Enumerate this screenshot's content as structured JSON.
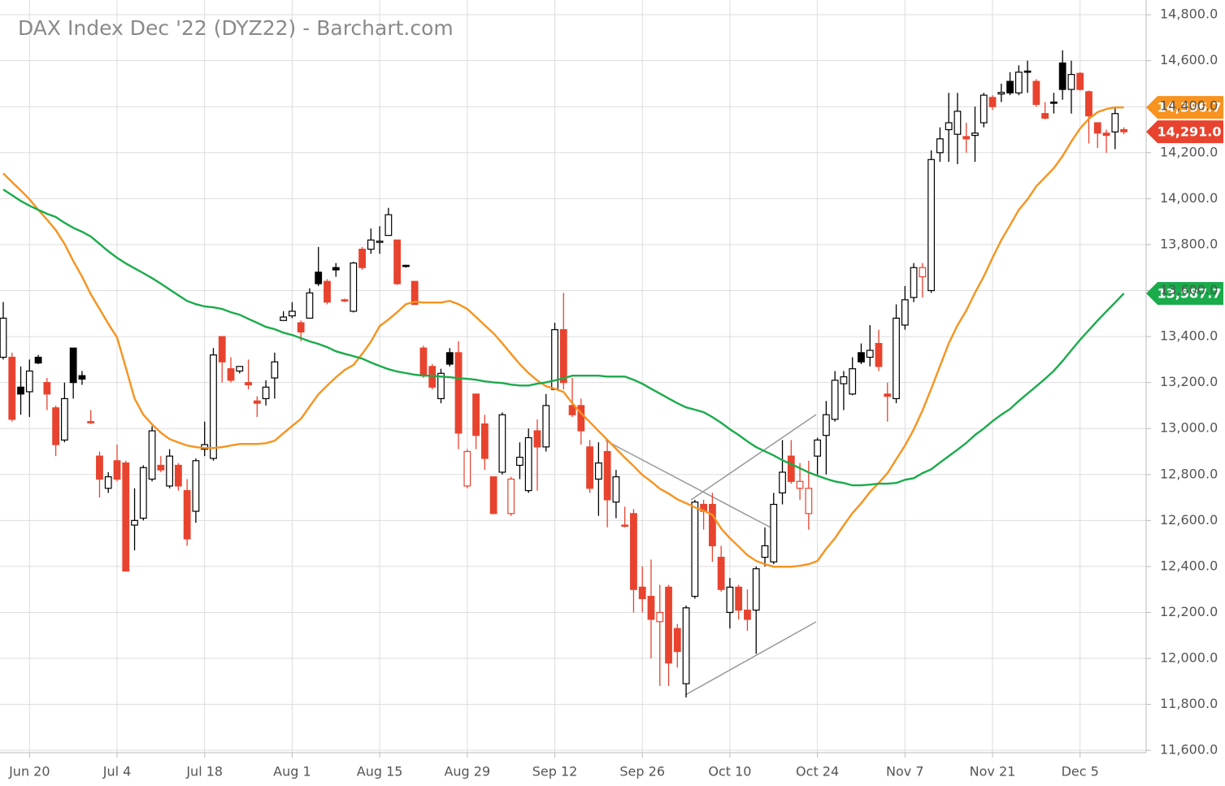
{
  "chart_data": {
    "type": "candlestick",
    "title": "DAX Index Dec '22 (DYZ22) - Barchart.com",
    "categories": [
      null,
      null,
      null,
      "Jun 20",
      null,
      null,
      null,
      null,
      null,
      null,
      null,
      null,
      null,
      "Jul 4",
      null,
      null,
      null,
      null,
      null,
      null,
      null,
      null,
      null,
      "Jul 18",
      null,
      null,
      null,
      null,
      null,
      null,
      null,
      null,
      null,
      "Aug 1",
      null,
      null,
      null,
      null,
      null,
      null,
      null,
      null,
      null,
      "Aug 15",
      null,
      null,
      null,
      null,
      null,
      null,
      null,
      null,
      null,
      "Aug 29",
      null,
      null,
      null,
      null,
      null,
      null,
      null,
      null,
      null,
      "Sep 12",
      null,
      null,
      null,
      null,
      null,
      null,
      null,
      null,
      null,
      "Sep 26",
      null,
      null,
      null,
      null,
      null,
      null,
      null,
      null,
      null,
      "Oct 10",
      null,
      null,
      null,
      null,
      null,
      null,
      null,
      null,
      null,
      "Oct 24",
      null,
      null,
      null,
      null,
      null,
      null,
      null,
      null,
      null,
      "Nov 7",
      null,
      null,
      null,
      null,
      null,
      null,
      null,
      null,
      null,
      "Nov 21",
      null,
      null,
      null,
      null,
      null,
      null,
      null,
      null,
      null,
      "Dec 5",
      null,
      null,
      null,
      null,
      null
    ],
    "open": [
      13310,
      13310,
      13180,
      13160,
      13310,
      13200,
      13090,
      12950,
      13350,
      13230,
      13030,
      12880,
      12740,
      12860,
      12850,
      12580,
      12610,
      12780,
      12840,
      12750,
      12840,
      12730,
      12640,
      12910,
      12870,
      13400,
      13260,
      13250,
      13200,
      13120,
      13130,
      13220,
      13470,
      13490,
      13460,
      13480,
      13680,
      13640,
      13700,
      13560,
      13510,
      13780,
      13780,
      13810,
      13840,
      13820,
      13710,
      13640,
      13350,
      13270,
      13130,
      13330,
      13330,
      12750,
      13150,
      13020,
      12790,
      12810,
      12630,
      12840,
      12730,
      12990,
      12920,
      13170,
      13430,
      13100,
      13100,
      12920,
      12780,
      12900,
      12680,
      12580,
      12630,
      12310,
      12270,
      12160,
      12310,
      12130,
      11890,
      12270,
      12670,
      12670,
      12440,
      12200,
      12310,
      12210,
      12210,
      12440,
      12420,
      12720,
      12880,
      12740,
      12630,
      12880,
      12970,
      13040,
      13195,
      13150,
      13330,
      13310,
      13370,
      13150,
      13130,
      13450,
      13570,
      13660,
      13600,
      14200,
      14300,
      14280,
      14270,
      14275,
      14330,
      14440,
      14455,
      14510,
      14460,
      14555,
      14510,
      14370,
      14420,
      14590,
      14475,
      14545,
      14465,
      14330,
      14285,
      14290,
      14300
    ],
    "high": [
      13550,
      13330,
      13270,
      13300,
      13320,
      13220,
      13100,
      13200,
      13350,
      13250,
      13080,
      12900,
      12810,
      12930,
      12860,
      12740,
      12840,
      13010,
      12880,
      12910,
      12850,
      12780,
      12870,
      13030,
      13350,
      13400,
      13310,
      13270,
      13300,
      13140,
      13210,
      13330,
      13510,
      13550,
      13470,
      13610,
      13790,
      13650,
      13720,
      13565,
      13725,
      13790,
      13870,
      13880,
      13960,
      13820,
      13712,
      13640,
      13360,
      13280,
      13260,
      13350,
      13380,
      12910,
      13150,
      13060,
      12790,
      13070,
      12790,
      12940,
      13000,
      13040,
      13150,
      13460,
      13590,
      13220,
      13130,
      12950,
      12940,
      12950,
      12820,
      12660,
      12650,
      12400,
      12430,
      12320,
      12320,
      12150,
      12230,
      12690,
      12690,
      12720,
      12490,
      12350,
      12320,
      12300,
      12400,
      12570,
      12720,
      12950,
      12950,
      12850,
      12860,
      12960,
      13120,
      13250,
      13250,
      13310,
      13370,
      13450,
      13430,
      13200,
      13540,
      13620,
      13720,
      13720,
      14210,
      14310,
      14460,
      14460,
      14330,
      14400,
      14460,
      14450,
      14500,
      14550,
      14580,
      14600,
      14520,
      14420,
      14460,
      14645,
      14600,
      14550,
      14470,
      14330,
      14300,
      14400,
      14310
    ],
    "low": [
      13300,
      13030,
      13060,
      13050,
      13280,
      13080,
      12880,
      12940,
      13130,
      13190,
      13020,
      12700,
      12720,
      12770,
      12380,
      12470,
      12600,
      12770,
      12810,
      12740,
      12730,
      12490,
      12590,
      12880,
      12860,
      13200,
      13200,
      13240,
      13170,
      13050,
      13100,
      13130,
      13470,
      13480,
      13380,
      13480,
      13620,
      13540,
      13660,
      13550,
      13505,
      13690,
      13760,
      13760,
      13840,
      13625,
      13700,
      13540,
      13220,
      13170,
      13110,
      13270,
      12910,
      12740,
      12910,
      12820,
      12630,
      12800,
      12620,
      12780,
      12720,
      12730,
      12900,
      13170,
      13170,
      13050,
      12930,
      12720,
      12620,
      12570,
      12610,
      12570,
      12200,
      12200,
      12000,
      11880,
      11880,
      11960,
      11830,
      12260,
      12560,
      12420,
      12290,
      12130,
      12170,
      12120,
      12020,
      12400,
      12410,
      12670,
      12760,
      12690,
      12560,
      12800,
      12800,
      13030,
      13080,
      13145,
      13280,
      13270,
      13250,
      13030,
      13110,
      13430,
      13550,
      13570,
      13590,
      14160,
      14160,
      14150,
      14200,
      14160,
      14310,
      14385,
      14420,
      14450,
      14450,
      14460,
      14400,
      14345,
      14370,
      14430,
      14370,
      14470,
      14240,
      14220,
      14200,
      14215,
      14280
    ],
    "close": [
      13480,
      13040,
      13150,
      13250,
      13285,
      13150,
      12930,
      13130,
      13200,
      13215,
      13025,
      12780,
      12790,
      12780,
      12380,
      12600,
      12830,
      12990,
      12820,
      12880,
      12750,
      12520,
      12860,
      12930,
      13320,
      13290,
      13210,
      13270,
      13190,
      13110,
      13180,
      13290,
      13485,
      13510,
      13420,
      13590,
      13630,
      13550,
      13690,
      13555,
      13720,
      13700,
      13820,
      13815,
      13930,
      13630,
      13705,
      13540,
      13230,
      13180,
      13240,
      13280,
      12980,
      12900,
      12970,
      12870,
      12630,
      13060,
      12780,
      12875,
      12960,
      12920,
      13100,
      13430,
      13200,
      13060,
      12990,
      12740,
      12850,
      12690,
      12790,
      12575,
      12300,
      12260,
      12170,
      12200,
      11980,
      12030,
      12220,
      12680,
      12640,
      12490,
      12300,
      12310,
      12210,
      12170,
      12390,
      12490,
      12670,
      12810,
      12770,
      12770,
      12740,
      12950,
      13060,
      13210,
      13225,
      13260,
      13290,
      13340,
      13270,
      13140,
      13480,
      13560,
      13700,
      13700,
      14170,
      14260,
      14330,
      14380,
      14260,
      14285,
      14450,
      14400,
      14462,
      14460,
      14550,
      14550,
      14410,
      14350,
      14418,
      14475,
      14540,
      14475,
      14360,
      14285,
      14275,
      14370,
      14291
    ],
    "colors": [
      "#000000",
      "#e8432e",
      "#000000",
      "#000000",
      "#000000",
      "#e8432e",
      "#e8432e",
      "#000000",
      "#000000",
      "#000000",
      "#e8432e",
      "#e8432e",
      "#000000",
      "#e8432e",
      "#e8432e",
      "#000000",
      "#000000",
      "#000000",
      "#e8432e",
      "#000000",
      "#e8432e",
      "#e8432e",
      "#000000",
      "#000000",
      "#000000",
      "#e8432e",
      "#e8432e",
      "#000000",
      "#e8432e",
      "#e8432e",
      "#000000",
      "#000000",
      "#000000",
      "#000000",
      "#e8432e",
      "#000000",
      "#000000",
      "#e8432e",
      "#000000",
      "#e8432e",
      "#000000",
      "#e8432e",
      "#000000",
      "#000000",
      "#000000",
      "#e8432e",
      "#000000",
      "#e8432e",
      "#e8432e",
      "#e8432e",
      "#000000",
      "#000000",
      "#e8432e",
      "#e8432e",
      "#e8432e",
      "#e8432e",
      "#e8432e",
      "#000000",
      "#e8432e",
      "#000000",
      "#000000",
      "#e8432e",
      "#000000",
      "#000000",
      "#e8432e",
      "#e8432e",
      "#e8432e",
      "#e8432e",
      "#000000",
      "#e8432e",
      "#000000",
      "#e8432e",
      "#e8432e",
      "#e8432e",
      "#e8432e",
      "#e8432e",
      "#e8432e",
      "#e8432e",
      "#000000",
      "#000000",
      "#e8432e",
      "#e8432e",
      "#e8432e",
      "#000000",
      "#e8432e",
      "#e8432e",
      "#000000",
      "#000000",
      "#000000",
      "#000000",
      "#e8432e",
      "#e8432e",
      "#e8432e",
      "#000000",
      "#000000",
      "#000000",
      "#000000",
      "#000000",
      "#000000",
      "#000000",
      "#e8432e",
      "#e8432e",
      "#000000",
      "#000000",
      "#000000",
      "#e8432e",
      "#000000",
      "#000000",
      "#000000",
      "#000000",
      "#e8432e",
      "#000000",
      "#000000",
      "#e8432e",
      "#000000",
      "#000000",
      "#000000",
      "#000000",
      "#e8432e",
      "#e8432e",
      "#000000",
      "#000000",
      "#000000",
      "#e8432e",
      "#e8432e",
      "#e8432e",
      "#e8432e",
      "#000000",
      "#e8432e"
    ],
    "series": [
      {
        "color": "#f7931e",
        "values": [
          14110,
          14072,
          14036,
          13997,
          13951,
          13909,
          13863,
          13803,
          13728,
          13661,
          13584,
          13520,
          13456,
          13396,
          13265,
          13131,
          13060,
          13018,
          12982,
          12954,
          12940,
          12926,
          12919,
          12915,
          12915,
          12919,
          12926,
          12933,
          12933,
          12933,
          12936,
          12947,
          12979,
          13011,
          13042,
          13096,
          13149,
          13187,
          13223,
          13255,
          13276,
          13325,
          13378,
          13446,
          13474,
          13506,
          13541,
          13552,
          13548,
          13548,
          13548,
          13555,
          13541,
          13520,
          13485,
          13449,
          13414,
          13371,
          13325,
          13280,
          13241,
          13209,
          13184,
          13173,
          13159,
          13110,
          13067,
          13028,
          12989,
          12951,
          12912,
          12873,
          12837,
          12798,
          12770,
          12738,
          12717,
          12692,
          12675,
          12657,
          12643,
          12625,
          12565,
          12523,
          12487,
          12449,
          12424,
          12410,
          12399,
          12399,
          12399,
          12403,
          12410,
          12424,
          12477,
          12523,
          12579,
          12632,
          12675,
          12724,
          12763,
          12806,
          12866,
          12926,
          12996,
          13078,
          13173,
          13272,
          13371,
          13449,
          13513,
          13591,
          13661,
          13743,
          13820,
          13884,
          13951,
          13997,
          14054,
          14093,
          14132,
          14185,
          14248,
          14305,
          14347,
          14376,
          14390,
          14397,
          14396.7
        ]
      },
      {
        "color": "#1aab4b",
        "values": [
          14040,
          14015,
          13990,
          13969,
          13951,
          13934,
          13920,
          13895,
          13873,
          13856,
          13835,
          13803,
          13771,
          13743,
          13718,
          13697,
          13676,
          13654,
          13630,
          13605,
          13580,
          13555,
          13541,
          13531,
          13527,
          13520,
          13506,
          13495,
          13477,
          13460,
          13442,
          13432,
          13417,
          13407,
          13393,
          13379,
          13368,
          13354,
          13336,
          13325,
          13315,
          13304,
          13287,
          13272,
          13258,
          13248,
          13241,
          13234,
          13230,
          13230,
          13226,
          13223,
          13219,
          13216,
          13212,
          13205,
          13201,
          13198,
          13191,
          13187,
          13187,
          13195,
          13201,
          13209,
          13219,
          13230,
          13230,
          13230,
          13230,
          13226,
          13226,
          13226,
          13212,
          13195,
          13173,
          13152,
          13131,
          13110,
          13092,
          13082,
          13071,
          13050,
          13025,
          12997,
          12972,
          12944,
          12919,
          12901,
          12883,
          12862,
          12845,
          12827,
          12809,
          12795,
          12781,
          12770,
          12763,
          12753,
          12753,
          12756,
          12760,
          12760,
          12763,
          12777,
          12784,
          12806,
          12823,
          12852,
          12880,
          12908,
          12937,
          12972,
          13000,
          13032,
          13060,
          13085,
          13120,
          13152,
          13184,
          13216,
          13251,
          13294,
          13340,
          13386,
          13428,
          13470,
          13509,
          13548,
          13587.7
        ]
      }
    ],
    "price_tags": [
      {
        "value": 14396.7,
        "label": "14,396.7",
        "color": "#f7931e"
      },
      {
        "value": 14291,
        "label": "14,291.0",
        "color": "#e8432e"
      },
      {
        "value": 13587.7,
        "label": "13,587.7",
        "color": "#1aab4b"
      }
    ],
    "ylim": [
      11590,
      14864
    ],
    "yticks": [
      {
        "value": 11600,
        "label": "11,600.0"
      },
      {
        "value": 11800,
        "label": "11,800.0"
      },
      {
        "value": 12000,
        "label": "12,000.0"
      },
      {
        "value": 12200,
        "label": "12,200.0"
      },
      {
        "value": 12400,
        "label": "12,400.0"
      },
      {
        "value": 12600,
        "label": "12,600.0"
      },
      {
        "value": 12800,
        "label": "12,800.0"
      },
      {
        "value": 13000,
        "label": "13,000.0"
      },
      {
        "value": 13200,
        "label": "13,200.0"
      },
      {
        "value": 13400,
        "label": "13,400.0"
      },
      {
        "value": 13600,
        "label": "13,600.0"
      },
      {
        "value": 13800,
        "label": "13,800.0"
      },
      {
        "value": 14000,
        "label": "14,000.0"
      },
      {
        "value": 14200,
        "label": "14,200.0"
      },
      {
        "value": 14400,
        "label": "14,400.0"
      },
      {
        "value": 14600,
        "label": "14,600.0"
      },
      {
        "value": 14800,
        "label": "14,800.0"
      }
    ],
    "grid": true
  }
}
